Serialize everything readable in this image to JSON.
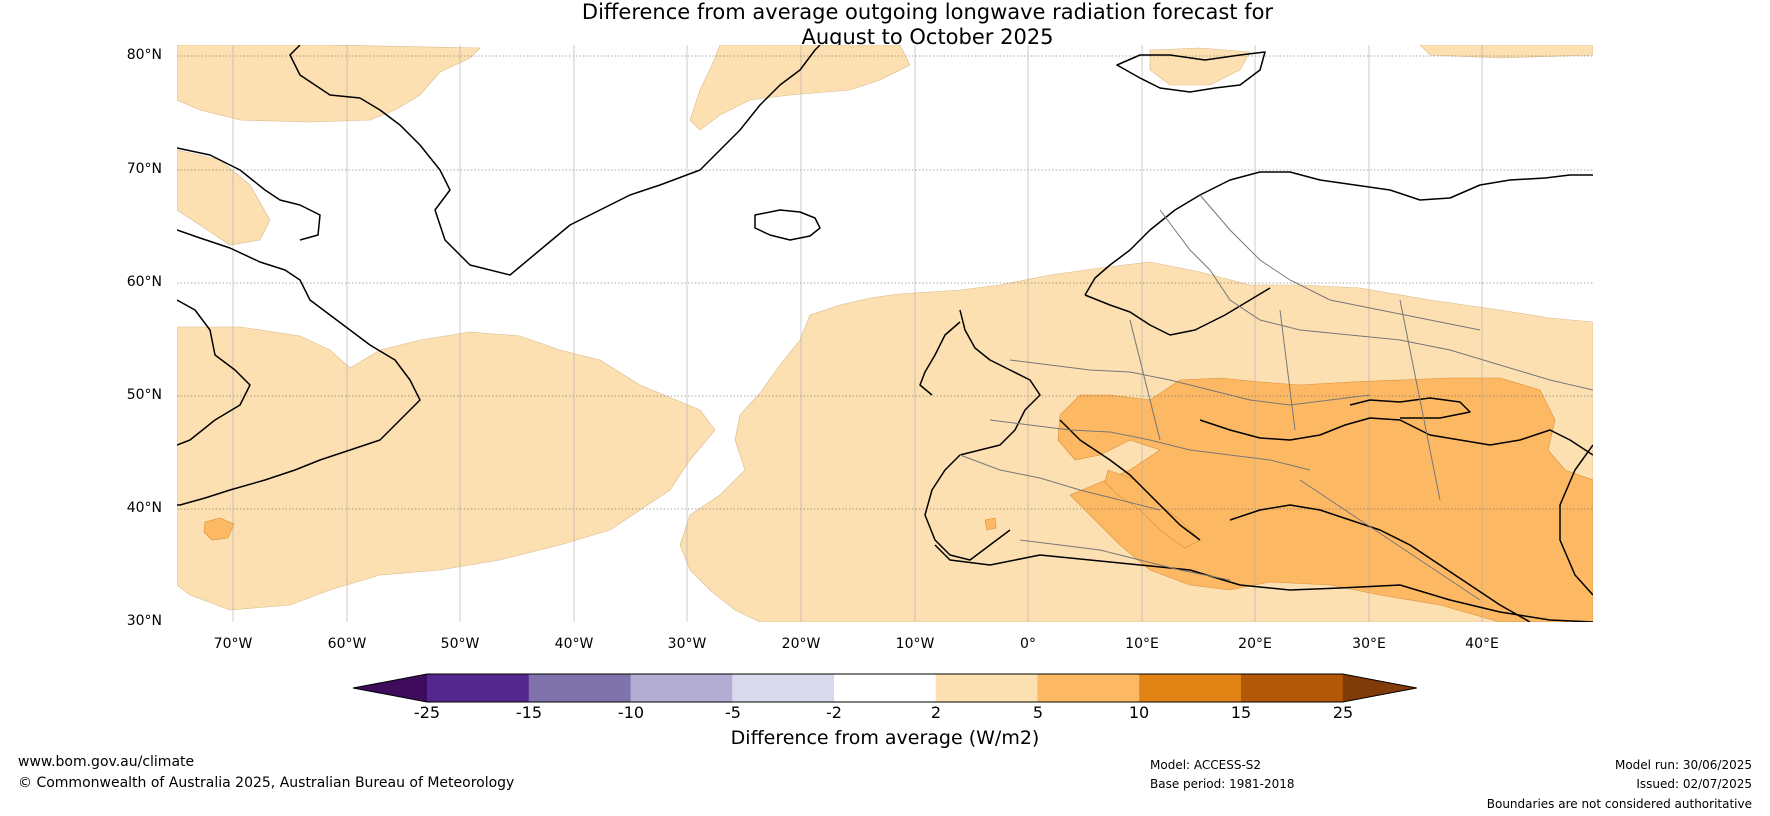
{
  "title_line1": "Difference from average outgoing longwave radiation forecast for",
  "title_line2": "August to October 2025",
  "lat_labels": [
    "80°N",
    "70°N",
    "60°N",
    "50°N",
    "40°N",
    "30°N"
  ],
  "lon_labels": [
    "70°W",
    "60°W",
    "50°W",
    "40°W",
    "30°W",
    "20°W",
    "10°W",
    "0°",
    "10°E",
    "20°E",
    "30°E",
    "40°E"
  ],
  "colorbar": {
    "title": "Difference from average (W/m2)",
    "ticks": [
      "-25",
      "-15",
      "-10",
      "-5",
      "-2",
      "2",
      "5",
      "10",
      "15",
      "25"
    ],
    "colors": [
      "#3f0b5c",
      "#54278f",
      "#8073ac",
      "#b2abd2",
      "#d8daeb",
      "#ffffff",
      "#fde0b2",
      "#fdb863",
      "#e08214",
      "#b35806",
      "#7f3b08"
    ]
  },
  "footer": {
    "url": "www.bom.gov.au/climate",
    "copyright": "© Commonwealth of Australia 2025, Australian Bureau of Meteorology",
    "model": "Model: ACCESS-S2",
    "base_period": "Base period: 1981-2018",
    "model_run": "Model run: 30/06/2025",
    "issued": "Issued: 02/07/2025",
    "disclaimer": "Boundaries are not considered authoritative"
  }
}
